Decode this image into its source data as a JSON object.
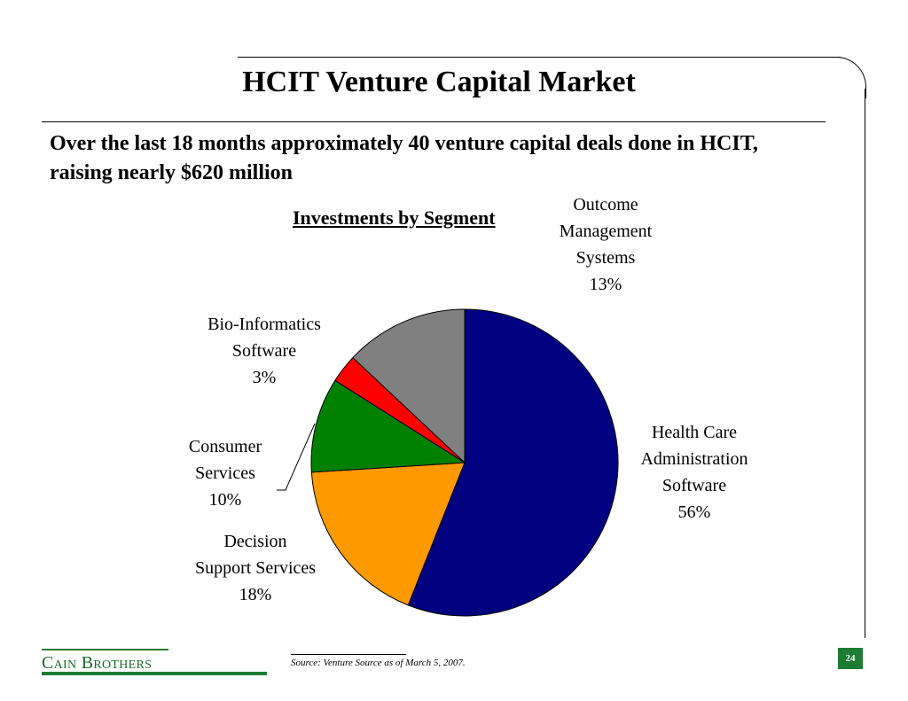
{
  "slide": {
    "title": "HCIT Venture Capital Market",
    "subtitle": "Over the last 18 months approximately 40 venture capital deals done in HCIT, raising nearly $620 million",
    "page_number": "24"
  },
  "footer": {
    "brand": "Cain Brothers",
    "source": "Source: Venture Source as of March 5, 2007."
  },
  "chart_data": {
    "type": "pie",
    "title": "Investments by Segment",
    "slices": [
      {
        "name": "Health Care Administration Software",
        "label_lines": [
          "Health Care",
          "Administration",
          "Software",
          "56%"
        ],
        "value": 56,
        "color": "#000080"
      },
      {
        "name": "Decision Support Services",
        "label_lines": [
          "Decision",
          "Support Services",
          "18%"
        ],
        "value": 18,
        "color": "#FF9900"
      },
      {
        "name": "Consumer Services",
        "label_lines": [
          "Consumer",
          "Services",
          "10%"
        ],
        "value": 10,
        "color": "#008000"
      },
      {
        "name": "Bio-Informatics Software",
        "label_lines": [
          "Bio-Informatics",
          "Software",
          "3%"
        ],
        "value": 3,
        "color": "#FF0000"
      },
      {
        "name": "Outcome Management Systems",
        "label_lines": [
          "Outcome",
          "Management",
          "Systems",
          "13%"
        ],
        "value": 13,
        "color": "#808080"
      }
    ]
  }
}
